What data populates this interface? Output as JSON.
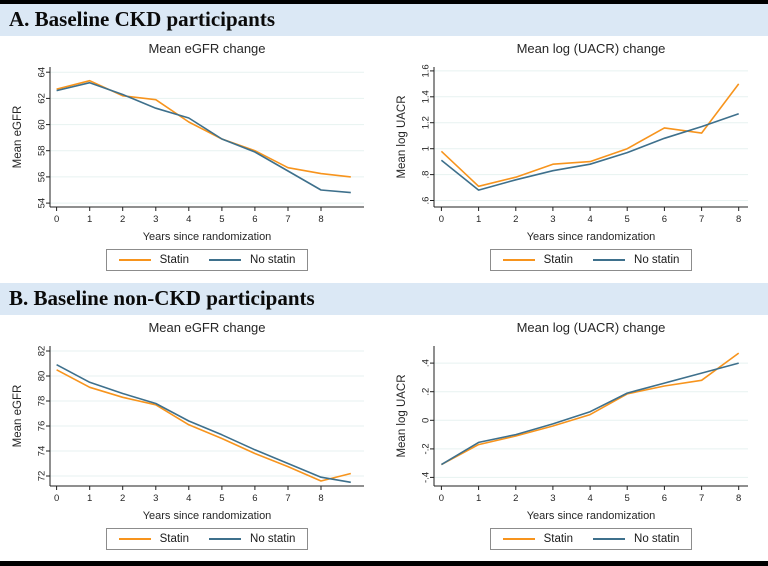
{
  "page": {
    "sections": [
      {
        "heading": "A. Baseline CKD participants"
      },
      {
        "heading": "B. Baseline non-CKD participants"
      }
    ]
  },
  "colors": {
    "statin": "#f7941d",
    "no_statin": "#3e708c",
    "header_band": "#dbe8f5",
    "grid": "#e7f2f1",
    "axis": "#1f1f1f"
  },
  "chart_data": [
    {
      "type": "line",
      "title": "Mean eGFR change",
      "xlabel": "Years since randomization",
      "ylabel": "Mean eGFR",
      "x": [
        0,
        1,
        2,
        3,
        4,
        5,
        6,
        7,
        8,
        8.9
      ],
      "xlim": [
        -0.2,
        9.3
      ],
      "ylim": [
        53.7,
        64.4
      ],
      "xtick_values": [
        0,
        1,
        2,
        3,
        4,
        5,
        6,
        7,
        8
      ],
      "xtick_labels": [
        "0",
        "1",
        "2",
        "3",
        "4",
        "5",
        "6",
        "7",
        "8"
      ],
      "ytick_values": [
        54,
        56,
        58,
        60,
        62,
        64
      ],
      "ytick_labels": [
        "54",
        "56",
        "58",
        "60",
        "62",
        "64"
      ],
      "grid": "horizontal",
      "legend_position": "bottom-center",
      "series": [
        {
          "name": "Statin",
          "color_key": "statin",
          "values": [
            62.7,
            63.35,
            62.2,
            61.9,
            60.2,
            58.9,
            58.0,
            56.7,
            56.25,
            56.0
          ]
        },
        {
          "name": "No statin",
          "color_key": "no_statin",
          "values": [
            62.6,
            63.2,
            62.3,
            61.25,
            60.5,
            58.9,
            57.9,
            56.45,
            55.0,
            54.8
          ]
        }
      ]
    },
    {
      "type": "line",
      "title": "Mean log (UACR) change",
      "xlabel": "Years since randomization",
      "ylabel": "Mean log UACR",
      "x": [
        0,
        1,
        2,
        3,
        4,
        5,
        6,
        7,
        8
      ],
      "xlim": [
        -0.2,
        8.25
      ],
      "ylim": [
        0.55,
        1.63
      ],
      "xtick_values": [
        0,
        1,
        2,
        3,
        4,
        5,
        6,
        7,
        8
      ],
      "xtick_labels": [
        "0",
        "1",
        "2",
        "3",
        "4",
        "5",
        "6",
        "7",
        "8"
      ],
      "ytick_values": [
        0.6,
        0.8,
        1.0,
        1.2,
        1.4,
        1.6
      ],
      "ytick_labels": [
        ".6",
        ".8",
        "1",
        "1.2",
        "1.4",
        "1.6"
      ],
      "grid": "horizontal",
      "legend_position": "bottom-center",
      "series": [
        {
          "name": "Statin",
          "color_key": "statin",
          "values": [
            0.98,
            0.71,
            0.78,
            0.88,
            0.9,
            1.0,
            1.16,
            1.12,
            1.5
          ]
        },
        {
          "name": "No statin",
          "color_key": "no_statin",
          "values": [
            0.91,
            0.68,
            0.76,
            0.83,
            0.88,
            0.97,
            1.08,
            1.17,
            1.27
          ]
        }
      ]
    },
    {
      "type": "line",
      "title": "Mean eGFR change",
      "xlabel": "Years since randomization",
      "ylabel": "Mean eGFR",
      "x": [
        0,
        1,
        2,
        3,
        4,
        5,
        6,
        7,
        8,
        8.9
      ],
      "xlim": [
        -0.2,
        9.3
      ],
      "ylim": [
        71.2,
        82.4
      ],
      "xtick_values": [
        0,
        1,
        2,
        3,
        4,
        5,
        6,
        7,
        8
      ],
      "xtick_labels": [
        "0",
        "1",
        "2",
        "3",
        "4",
        "5",
        "6",
        "7",
        "8"
      ],
      "ytick_values": [
        72,
        74,
        76,
        78,
        80,
        82
      ],
      "ytick_labels": [
        "72",
        "74",
        "76",
        "78",
        "80",
        "82"
      ],
      "grid": "horizontal",
      "legend_position": "bottom-center",
      "series": [
        {
          "name": "Statin",
          "color_key": "statin",
          "values": [
            80.5,
            79.1,
            78.3,
            77.7,
            76.1,
            75.0,
            73.8,
            72.75,
            71.6,
            72.2
          ]
        },
        {
          "name": "No statin",
          "color_key": "no_statin",
          "values": [
            80.9,
            79.5,
            78.6,
            77.8,
            76.4,
            75.3,
            74.1,
            73.0,
            71.9,
            71.5
          ]
        }
      ]
    },
    {
      "type": "line",
      "title": "Mean log (UACR) change",
      "xlabel": "Years since randomization",
      "ylabel": "Mean log UACR",
      "x": [
        0,
        1,
        2,
        3,
        4,
        5,
        6,
        7,
        8
      ],
      "xlim": [
        -0.2,
        8.25
      ],
      "ylim": [
        -0.46,
        0.52
      ],
      "xtick_values": [
        0,
        1,
        2,
        3,
        4,
        5,
        6,
        7,
        8
      ],
      "xtick_labels": [
        "0",
        "1",
        "2",
        "3",
        "4",
        "5",
        "6",
        "7",
        "8"
      ],
      "ytick_values": [
        -0.4,
        -0.2,
        0,
        0.2,
        0.4
      ],
      "ytick_labels": [
        "-.4",
        "-.2",
        "0",
        ".2",
        ".4"
      ],
      "grid": "horizontal",
      "legend_position": "bottom-center",
      "series": [
        {
          "name": "Statin",
          "color_key": "statin",
          "values": [
            -0.31,
            -0.17,
            -0.11,
            -0.04,
            0.04,
            0.185,
            0.24,
            0.28,
            0.47
          ]
        },
        {
          "name": "No statin",
          "color_key": "no_statin",
          "values": [
            -0.31,
            -0.155,
            -0.1,
            -0.025,
            0.06,
            0.19,
            0.26,
            0.33,
            0.4
          ]
        }
      ]
    }
  ]
}
